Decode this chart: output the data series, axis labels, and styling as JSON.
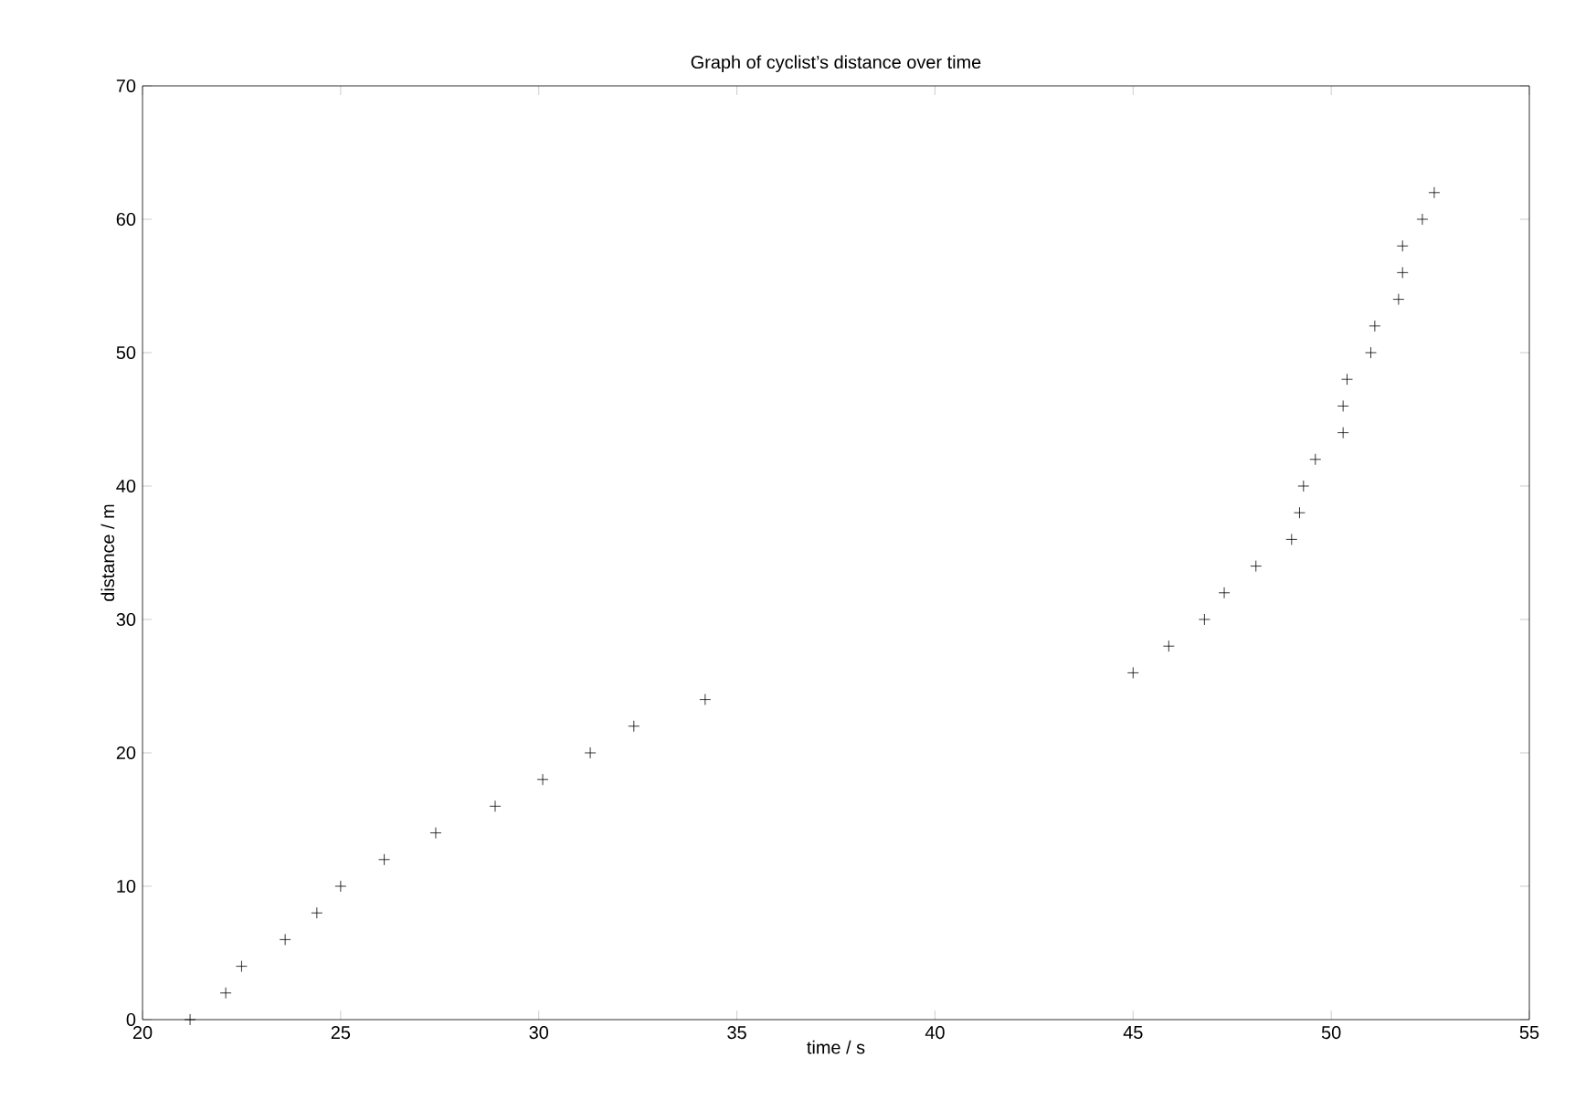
{
  "chart_data": {
    "type": "scatter",
    "title": "Graph of cyclist’s distance over time",
    "xlabel": "time / s",
    "ylabel": "distance / m",
    "x": [
      21.2,
      22.1,
      22.5,
      23.6,
      24.4,
      25.0,
      26.1,
      27.4,
      28.9,
      30.1,
      31.3,
      32.4,
      34.2,
      45.0,
      45.9,
      46.8,
      47.3,
      48.1,
      49.0,
      49.2,
      49.3,
      49.6,
      50.3,
      50.3,
      50.4,
      51.0,
      51.1,
      51.7,
      51.8,
      51.8,
      52.3,
      52.6
    ],
    "values": [
      0,
      2,
      4,
      6,
      8,
      10,
      12,
      14,
      16,
      18,
      20,
      22,
      24,
      26,
      28,
      30,
      32,
      34,
      36,
      38,
      40,
      42,
      44,
      46,
      48,
      50,
      52,
      54,
      56,
      58,
      60,
      62
    ],
    "color": "#000000",
    "marker": "cross",
    "xlim": [
      20,
      55
    ],
    "ylim": [
      0,
      70
    ],
    "xticks": [
      20,
      25,
      30,
      35,
      40,
      45,
      50,
      55
    ],
    "yticks": [
      0,
      10,
      20,
      30,
      40,
      50,
      60,
      70
    ]
  }
}
